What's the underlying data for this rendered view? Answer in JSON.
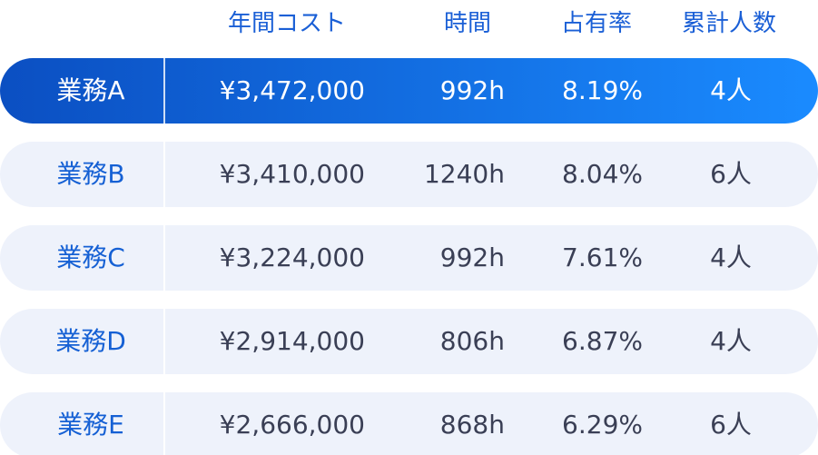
{
  "header": {
    "columns": [
      "年間コスト",
      "時間",
      "占有率",
      "累計人数"
    ]
  },
  "table": {
    "rows": [
      [
        "業務A",
        "¥3,472,000",
        "992h",
        "8.19%",
        "4人"
      ],
      [
        "業務B",
        "¥3,410,000",
        "1240h",
        "8.04%",
        "6人"
      ],
      [
        "業務C",
        "¥3,224,000",
        "992h",
        "7.61%",
        "4人"
      ],
      [
        "業務D",
        "¥2,914,000",
        "806h",
        "6.87%",
        "4人"
      ],
      [
        "業務E",
        "¥2,666,000",
        "868h",
        "6.29%",
        "6人"
      ]
    ]
  }
}
